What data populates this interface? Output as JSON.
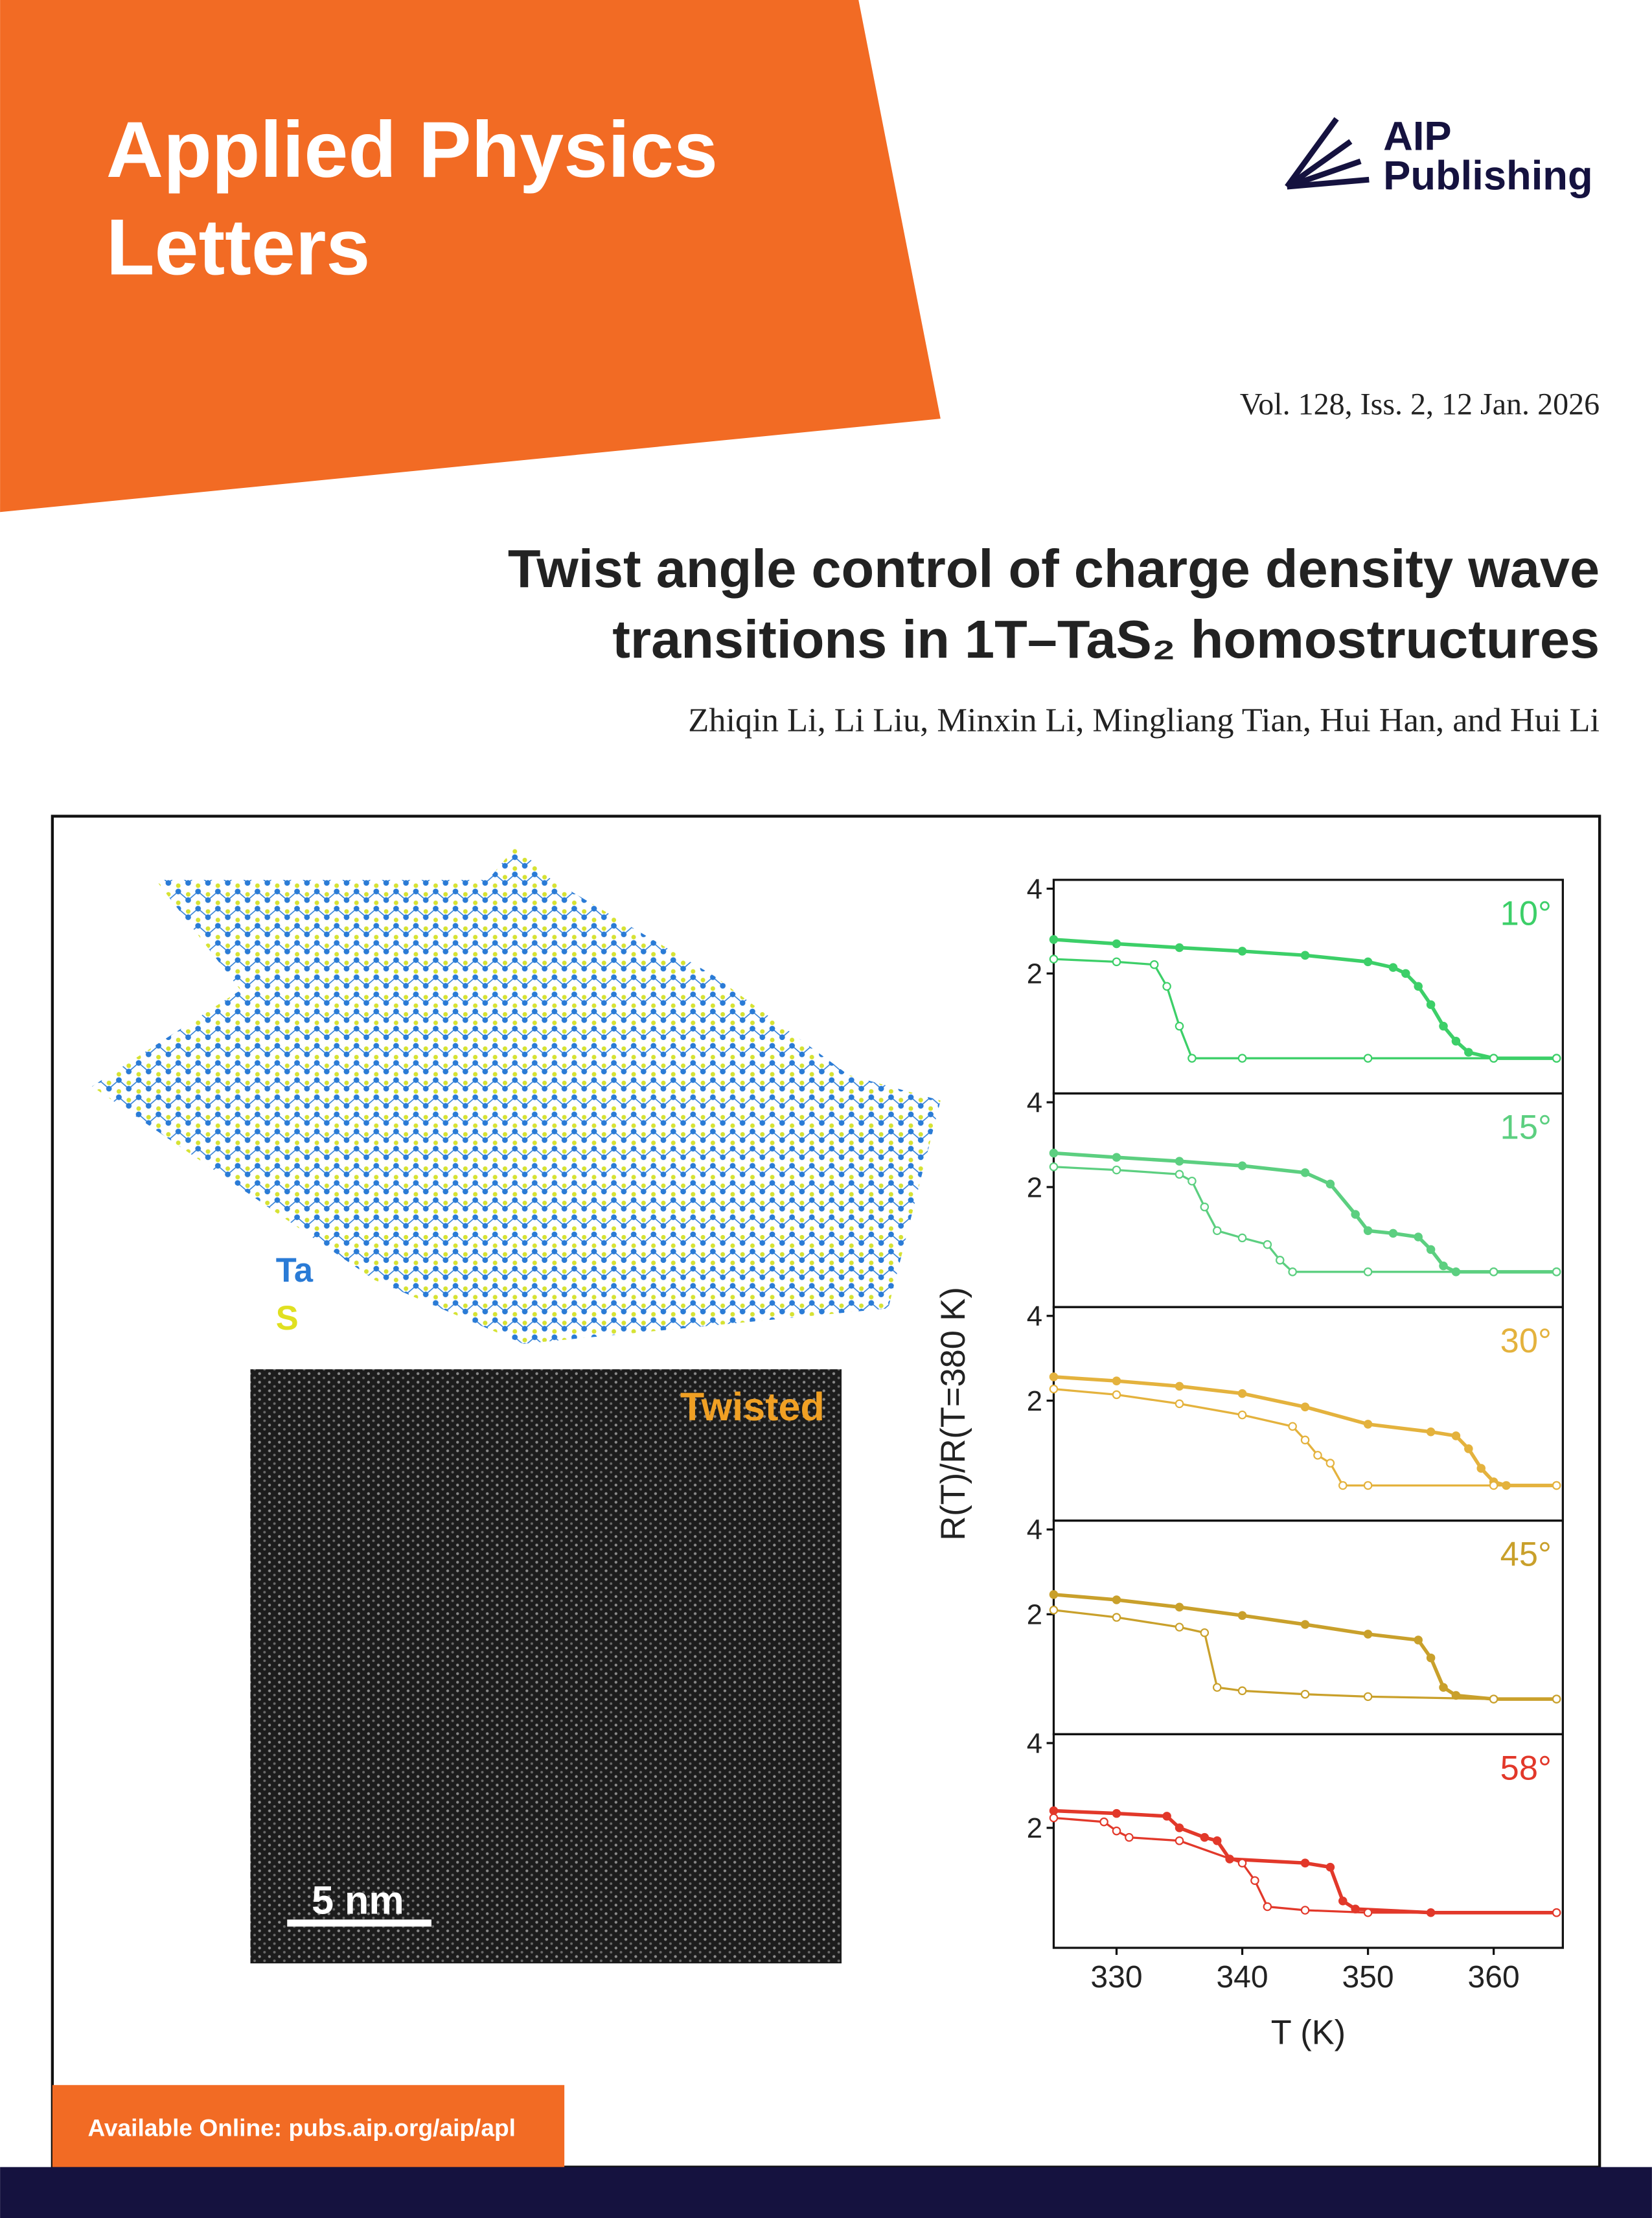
{
  "header": {
    "journal_lines": [
      "Applied Physics",
      "Letters"
    ],
    "publisher_lines": [
      "AIP",
      "Publishing"
    ],
    "issue": "Vol. 128, Iss. 2, 12 Jan. 2026"
  },
  "article": {
    "title_lines": [
      "Twist angle control of charge density wave",
      "transitions in 1T–TaS₂ homostructures"
    ],
    "authors": "Zhiqin Li, Li Liu, Minxin Li, Mingliang Tian, Hui Han, and Hui Li"
  },
  "figure": {
    "legend": [
      "Ta",
      "S"
    ],
    "image_label": "Twisted",
    "scale_bar": "5 nm"
  },
  "footer": "Available Online: pubs.aip.org/aip/apl",
  "chart_data": [
    {
      "type": "line",
      "annotation": "10°",
      "color": "#3ccf68",
      "log_scale": true,
      "xlim": [
        325,
        365.5
      ],
      "ylim": [
        0.75,
        4.3
      ],
      "yticks": [
        4,
        2
      ],
      "series": [
        {
          "marker": "filled",
          "x": [
            325,
            330,
            335,
            340,
            345,
            350,
            352,
            353,
            354,
            355,
            356,
            357,
            358,
            360,
            365
          ],
          "values": [
            2.64,
            2.55,
            2.47,
            2.4,
            2.32,
            2.2,
            2.1,
            2.0,
            1.8,
            1.55,
            1.3,
            1.15,
            1.05,
            1.0,
            1.0
          ]
        },
        {
          "marker": "open",
          "x": [
            325,
            330,
            333,
            334,
            335,
            336,
            340,
            350,
            360,
            365
          ],
          "values": [
            2.25,
            2.2,
            2.15,
            1.8,
            1.3,
            1.0,
            1.0,
            1.0,
            1.0,
            1.0
          ]
        }
      ]
    },
    {
      "type": "line",
      "annotation": "15°",
      "color": "#5ccf80",
      "log_scale": true,
      "xlim": [
        325,
        365.5
      ],
      "ylim": [
        0.75,
        4.3
      ],
      "yticks": [
        4,
        2
      ],
      "series": [
        {
          "marker": "filled",
          "x": [
            325,
            330,
            335,
            340,
            345,
            347,
            349,
            350,
            352,
            354,
            355,
            356,
            357,
            360,
            365
          ],
          "values": [
            2.64,
            2.55,
            2.47,
            2.38,
            2.25,
            2.05,
            1.6,
            1.4,
            1.37,
            1.33,
            1.2,
            1.05,
            1.0,
            1.0,
            1.0
          ]
        },
        {
          "marker": "open",
          "x": [
            325,
            330,
            335,
            336,
            337,
            338,
            340,
            342,
            343,
            344,
            350,
            360,
            365
          ],
          "values": [
            2.36,
            2.3,
            2.22,
            2.1,
            1.7,
            1.4,
            1.32,
            1.25,
            1.1,
            1.0,
            1.0,
            1.0,
            1.0
          ]
        }
      ]
    },
    {
      "type": "line",
      "annotation": "30°",
      "color": "#e4b23d",
      "log_scale": true,
      "xlim": [
        325,
        365.5
      ],
      "ylim": [
        0.75,
        4.3
      ],
      "yticks": [
        4,
        2
      ],
      "ylabel": "R(T)/R(T=380 K)",
      "series": [
        {
          "marker": "filled",
          "x": [
            325,
            330,
            335,
            340,
            345,
            350,
            355,
            357,
            358,
            359,
            360,
            361,
            365
          ],
          "values": [
            2.43,
            2.35,
            2.25,
            2.12,
            1.9,
            1.65,
            1.55,
            1.5,
            1.35,
            1.15,
            1.03,
            1.0,
            1.0
          ]
        },
        {
          "marker": "open",
          "x": [
            325,
            330,
            335,
            340,
            344,
            345,
            346,
            347,
            348,
            350,
            360,
            365
          ],
          "values": [
            2.2,
            2.1,
            1.95,
            1.78,
            1.62,
            1.45,
            1.28,
            1.2,
            1.0,
            1.0,
            1.0,
            1.0
          ]
        }
      ]
    },
    {
      "type": "line",
      "annotation": "45°",
      "color": "#c9a02b",
      "log_scale": true,
      "xlim": [
        325,
        365.5
      ],
      "ylim": [
        0.75,
        4.3
      ],
      "yticks": [
        4,
        2
      ],
      "series": [
        {
          "marker": "filled",
          "x": [
            325,
            330,
            335,
            340,
            345,
            350,
            354,
            355,
            356,
            357,
            360,
            365
          ],
          "values": [
            2.35,
            2.25,
            2.12,
            1.98,
            1.84,
            1.7,
            1.62,
            1.4,
            1.1,
            1.03,
            1.0,
            1.0
          ]
        },
        {
          "marker": "open",
          "x": [
            325,
            330,
            335,
            337,
            338,
            340,
            345,
            350,
            360,
            365
          ],
          "values": [
            2.07,
            1.95,
            1.8,
            1.72,
            1.1,
            1.07,
            1.04,
            1.02,
            1.0,
            1.0
          ]
        }
      ]
    },
    {
      "type": "line",
      "annotation": "58°",
      "color": "#e2382a",
      "log_scale": true,
      "xlim": [
        325,
        365.5
      ],
      "ylim": [
        0.75,
        4.3
      ],
      "yticks": [
        4,
        2
      ],
      "xticks": [
        330,
        340,
        350,
        360
      ],
      "xlabel": "T (K)",
      "series": [
        {
          "marker": "filled",
          "x": [
            325,
            330,
            334,
            335,
            337,
            338,
            339,
            345,
            347,
            348,
            349,
            355,
            365
          ],
          "values": [
            2.3,
            2.25,
            2.2,
            2.0,
            1.85,
            1.8,
            1.55,
            1.5,
            1.45,
            1.1,
            1.03,
            1.0,
            1.0
          ]
        },
        {
          "marker": "open",
          "x": [
            325,
            329,
            330,
            331,
            335,
            340,
            341,
            342,
            345,
            350,
            365
          ],
          "values": [
            2.17,
            2.1,
            1.95,
            1.85,
            1.8,
            1.5,
            1.3,
            1.05,
            1.02,
            1.0,
            1.0
          ]
        }
      ]
    }
  ]
}
